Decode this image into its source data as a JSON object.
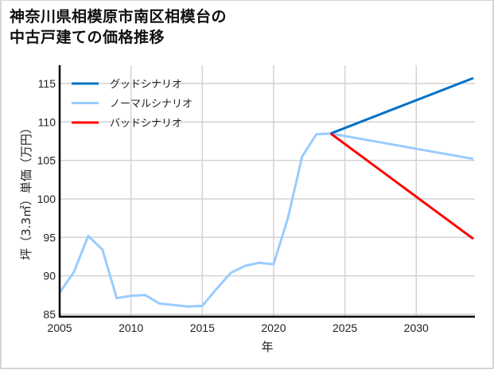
{
  "title_line1": "神奈川県相模原市南区相模台の",
  "title_line2": "中古戸建ての価格推移",
  "chart_data": {
    "type": "line",
    "title": "神奈川県相模原市南区相模台の中古戸建ての価格推移",
    "xlabel": "年",
    "ylabel": "坪（3.3㎡）単価（万円）",
    "xlim": [
      2005,
      2034
    ],
    "ylim": [
      85,
      116.5
    ],
    "xticks": [
      2005,
      2010,
      2015,
      2020,
      2025,
      2030
    ],
    "yticks": [
      85,
      90,
      95,
      100,
      105,
      110,
      115
    ],
    "grid": true,
    "legend_position": "upper left",
    "series": [
      {
        "name": "グッドシナリオ",
        "color": "#0072c6",
        "x": [
          2024,
          2034
        ],
        "values": [
          108.5,
          115.7
        ]
      },
      {
        "name": "ノーマルシナリオ",
        "color": "#99ccff",
        "x": [
          2005,
          2006,
          2007,
          2008,
          2009,
          2010,
          2011,
          2012,
          2013,
          2014,
          2015,
          2016,
          2017,
          2018,
          2019,
          2020,
          2021,
          2022,
          2023,
          2024,
          2034
        ],
        "values": [
          87.8,
          90.5,
          95.2,
          93.4,
          87.1,
          87.4,
          87.5,
          86.4,
          86.2,
          86.0,
          86.1,
          88.3,
          90.4,
          91.3,
          91.7,
          91.5,
          97.5,
          105.5,
          108.4,
          108.5,
          105.2
        ]
      },
      {
        "name": "バッドシナリオ",
        "color": "#ff0000",
        "x": [
          2024,
          2034
        ],
        "values": [
          108.5,
          94.8
        ]
      }
    ]
  },
  "legend": [
    {
      "label": "グッドシナリオ",
      "color": "#0072c6"
    },
    {
      "label": "ノーマルシナリオ",
      "color": "#99ccff"
    },
    {
      "label": "バッドシナリオ",
      "color": "#ff0000"
    }
  ]
}
